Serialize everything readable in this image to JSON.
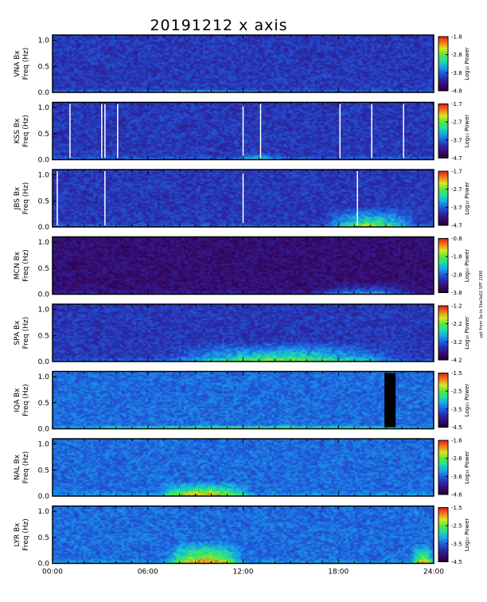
{
  "figure": {
    "title": "20191212 x axis",
    "side_note": "ppt from 3a to 3ba3a02 SPF 2000"
  },
  "colors": {
    "background": "#ffffff",
    "colormap": [
      "#1e0030",
      "#3a0a6e",
      "#2a2aa8",
      "#1f5fe0",
      "#18a8e8",
      "#1ee0a0",
      "#58e83a",
      "#d8e81e",
      "#f07a18",
      "#e81818"
    ],
    "gap_line": "#ffffff",
    "data_gap_block": "#000000"
  },
  "chart_data": [
    {
      "type": "heatmap",
      "station": "VNA",
      "ylabel": "VNA Bx\nFreq (Hz)",
      "yticks": [
        "0.0",
        "0.5",
        "1.0"
      ],
      "ylim": [
        0,
        1.1
      ],
      "colorbar": {
        "label": "Log₁₀ Power",
        "ticks": [
          "-1.8",
          "-2.8",
          "-3.8",
          "-4.8"
        ],
        "range": [
          -4.8,
          -1.8
        ]
      },
      "x_range_hours": [
        0,
        24
      ],
      "gap_lines_hours": [],
      "black_gap_hours": [],
      "activity": [
        {
          "start": 6.0,
          "end": 13.0,
          "fmax": 0.06,
          "level": 0.35
        }
      ]
    },
    {
      "type": "heatmap",
      "station": "KSS",
      "ylabel": "KSS Bx\nFreq (Hz)",
      "yticks": [
        "0.0",
        "0.5",
        "1.0"
      ],
      "ylim": [
        0,
        1.1
      ],
      "colorbar": {
        "label": "Log₁₀ Power",
        "ticks": [
          "-1.7",
          "-2.7",
          "-3.7",
          "-4.7"
        ],
        "range": [
          -4.7,
          -1.7
        ]
      },
      "x_range_hours": [
        0,
        24
      ],
      "gap_lines_hours": [
        1.1,
        3.1,
        3.3,
        4.1,
        12.0,
        13.1,
        18.1,
        20.1,
        22.1
      ],
      "black_gap_hours": [],
      "activity": [
        {
          "start": 11.5,
          "end": 14.5,
          "fmax": 0.15,
          "level": 0.25
        }
      ]
    },
    {
      "type": "heatmap",
      "station": "JBS",
      "ylabel": "JBS Bx\nFreq (Hz)",
      "yticks": [
        "0.0",
        "0.5",
        "1.0"
      ],
      "ylim": [
        0,
        1.1
      ],
      "colorbar": {
        "label": "Log₁₀ Power",
        "ticks": [
          "-1.7",
          "-2.7",
          "-3.7",
          "-4.7"
        ],
        "range": [
          -4.7,
          -1.7
        ]
      },
      "x_range_hours": [
        0,
        24
      ],
      "gap_lines_hours": [
        0.3,
        3.3,
        12.0,
        19.2
      ],
      "black_gap_hours": [],
      "activity": [
        {
          "start": 17.0,
          "end": 23.0,
          "fmax": 0.4,
          "level": 0.5
        }
      ]
    },
    {
      "type": "heatmap",
      "station": "MCN",
      "ylabel": "MCN Bx\nFreq (Hz)",
      "yticks": [
        "0.0",
        "0.5",
        "1.0"
      ],
      "ylim": [
        0,
        1.1
      ],
      "colorbar": {
        "label": "Log₁₀ Power",
        "ticks": [
          "-0.8",
          "-1.8",
          "-2.8",
          "-3.8"
        ],
        "range": [
          -3.8,
          -0.8
        ]
      },
      "x_range_hours": [
        0,
        24
      ],
      "gap_lines_hours": [],
      "black_gap_hours": [],
      "activity": [
        {
          "start": 16.0,
          "end": 23.0,
          "fmax": 0.25,
          "level": 0.3
        }
      ]
    },
    {
      "type": "heatmap",
      "station": "SPA",
      "ylabel": "SPA Bx\nFreq (Hz)",
      "yticks": [
        "0.0",
        "0.5",
        "1.0"
      ],
      "ylim": [
        0,
        1.1
      ],
      "colorbar": {
        "label": "Log₁₀ Power",
        "ticks": [
          "-1.2",
          "-2.2",
          "-3.2",
          "-4.2"
        ],
        "range": [
          -4.2,
          -1.2
        ]
      },
      "x_range_hours": [
        0,
        24
      ],
      "gap_lines_hours": [],
      "black_gap_hours": [],
      "activity": [
        {
          "start": 7.0,
          "end": 22.0,
          "fmax": 0.4,
          "level": 0.45
        }
      ]
    },
    {
      "type": "heatmap",
      "station": "IQA",
      "ylabel": "IQA Bx\nFreq (Hz)",
      "yticks": [
        "0.0",
        "0.5",
        "1.0"
      ],
      "ylim": [
        0,
        1.1
      ],
      "colorbar": {
        "label": "Log₁₀ Power",
        "ticks": [
          "-1.5",
          "-2.5",
          "-3.5",
          "-4.5"
        ],
        "range": [
          -4.5,
          -1.5
        ]
      },
      "x_range_hours": [
        0,
        24
      ],
      "gap_lines_hours": [],
      "black_gap_hours": [
        [
          20.9,
          21.6
        ]
      ],
      "activity": [
        {
          "start": 0.0,
          "end": 24.0,
          "fmax": 0.08,
          "level": 0.4
        }
      ]
    },
    {
      "type": "heatmap",
      "station": "NAL",
      "ylabel": "NAL Bx\nFreq (Hz)",
      "yticks": [
        "0.0",
        "0.5",
        "1.0"
      ],
      "ylim": [
        0,
        1.1
      ],
      "colorbar": {
        "label": "Log₁₀ Power",
        "ticks": [
          "-1.6",
          "-2.6",
          "-3.6",
          "-4.6"
        ],
        "range": [
          -4.6,
          -1.6
        ]
      },
      "x_range_hours": [
        0,
        24
      ],
      "gap_lines_hours": [],
      "black_gap_hours": [],
      "activity": [
        {
          "start": 6.5,
          "end": 12.5,
          "fmax": 0.3,
          "level": 0.55
        }
      ]
    },
    {
      "type": "heatmap",
      "station": "LYR",
      "ylabel": "LYR Bx\nFreq (Hz)",
      "yticks": [
        "0.0",
        "0.5",
        "1.0"
      ],
      "ylim": [
        0,
        1.1
      ],
      "colorbar": {
        "label": "Log₁₀ Power",
        "ticks": [
          "-1.5",
          "-2.5",
          "-3.5",
          "-4.5"
        ],
        "range": [
          -4.5,
          -1.5
        ]
      },
      "x_range_hours": [
        0,
        24
      ],
      "gap_lines_hours": [],
      "black_gap_hours": [],
      "activity": [
        {
          "start": 7.0,
          "end": 12.0,
          "fmax": 0.45,
          "level": 0.6
        },
        {
          "start": 22.5,
          "end": 24.0,
          "fmax": 0.4,
          "level": 0.5
        }
      ]
    }
  ],
  "x_axis": {
    "ticks": [
      "00:00",
      "06:00",
      "12:00",
      "18:00",
      "24:00"
    ],
    "tick_hours": [
      0,
      6,
      12,
      18,
      24
    ]
  }
}
